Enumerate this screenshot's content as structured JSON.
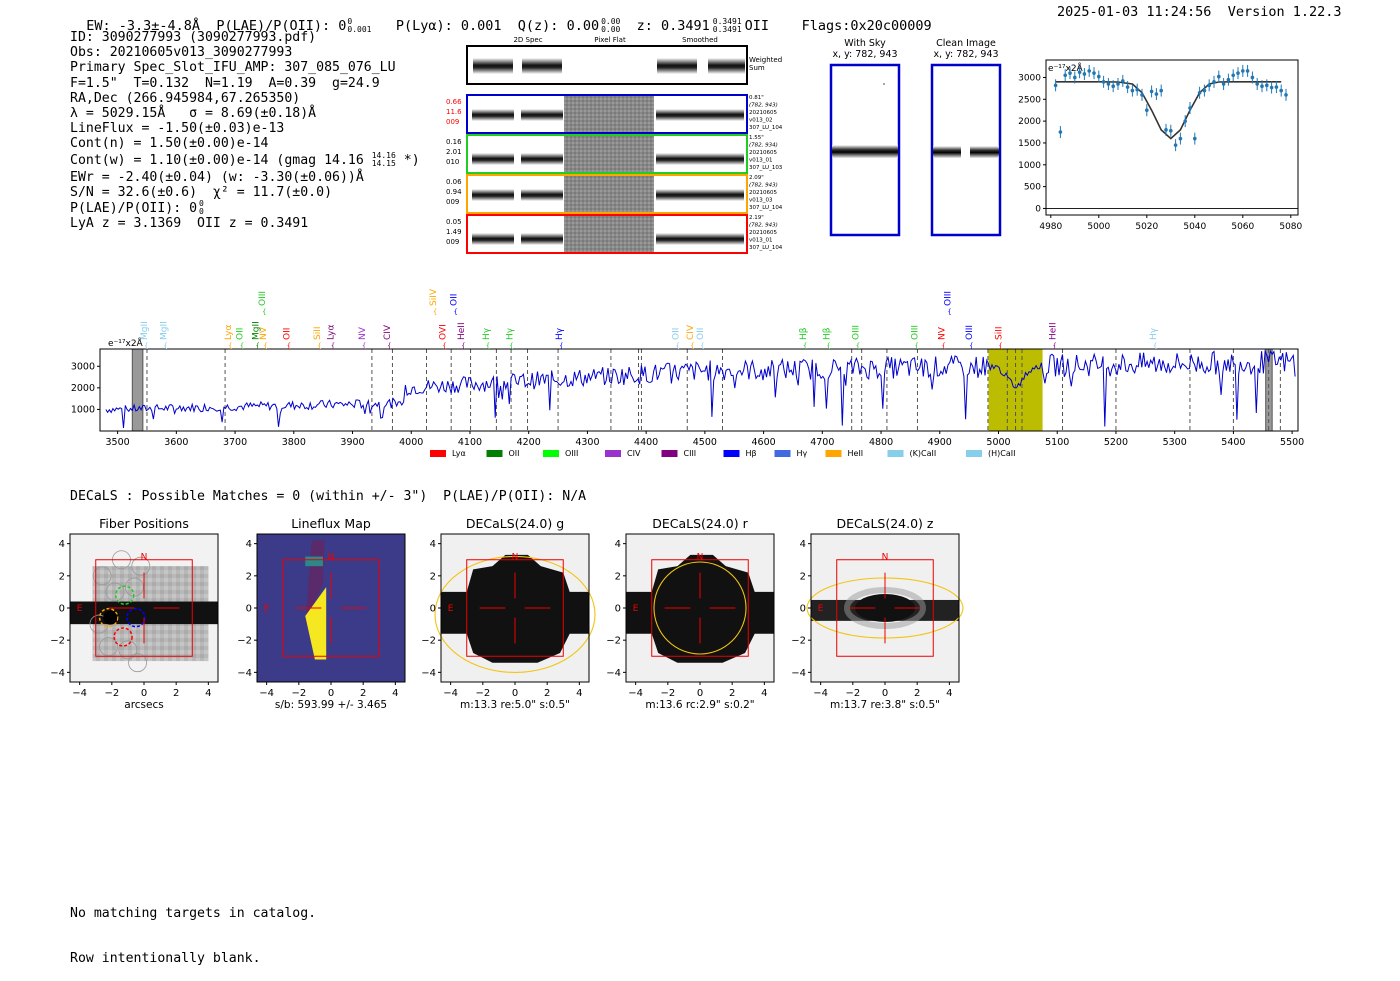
{
  "header": {
    "ew": "EW: -3.3±-4.8Å",
    "plae_label": "P(LAE)/P(OII): 0",
    "plae_sup": "0",
    "plae_sub": "0.001",
    "plya": "P(Lyα): 0.001",
    "qz_label": "Q(z): 0.00",
    "qz_sup": "0.00",
    "qz_sub": "0.00",
    "z_label": "z: 0.3491",
    "z_sup": "0.3491",
    "z_sub": "0.3491",
    "z_line": "OII",
    "flags": "Flags:0x20c00009",
    "datetime": "2025-01-03 11:24:56",
    "version": "Version 1.22.3"
  },
  "info": {
    "id": "ID: 3090277993 (3090277993.pdf)",
    "obs": "Obs: 20210605v013_3090277993",
    "primary": "Primary Spec_Slot_IFU_AMP: 307_085_076_LU",
    "fwhm": "F=1.5\"  T=0.132  N=1.19  A=0.39  g=24.9",
    "radec": "RA,Dec (266.945984,67.265350)",
    "lambda": "λ = 5029.15Å   σ = 8.69(±0.18)Å",
    "lineflux": "LineFlux = -1.50(±0.03)e-13",
    "contn": "Cont(n) = 1.50(±0.00)e-14",
    "contw_pre": "Cont(w) = 1.10(±0.00)e-14 (gmag 14.16",
    "contw_sup": "14.16",
    "contw_sub": "14.15",
    "contw_post": " *)",
    "ewr": "EWr = -2.40(±0.04) (w: -3.30(±0.06))Å",
    "sn": "S/N = 32.6(±0.6)  χ² = 11.7(±0.0)",
    "plae2": "P(LAE)/P(OII): 0",
    "plae2_sup": "0",
    "plae2_sub": "0",
    "lya_z": "LyA z = 3.1369  OII z = 0.3491"
  },
  "cutouts": {
    "col_labels": [
      "2D Spec",
      "Pixel Flat",
      "Smoothed"
    ],
    "weighted_sum": "Weighted\nSum",
    "rows": [
      {
        "left": [
          "0.66",
          "11.6",
          "009"
        ],
        "left_color": "#ff0000",
        "border": "#0000cc",
        "right": [
          "0.81\"",
          "(782, 943)",
          "20210605",
          "v013_02",
          "307_LU_104"
        ]
      },
      {
        "left": [
          "0.16",
          "2.01",
          "010"
        ],
        "left_color": "#000000",
        "border": "#22cc22",
        "right": [
          "1.55\"",
          "(782, 934)",
          "20210605",
          "v013_01",
          "307_LU_103"
        ]
      },
      {
        "left": [
          "0.06",
          "0.94",
          "009"
        ],
        "left_color": "#000000",
        "border": "#ffa500",
        "right": [
          "2.09\"",
          "(782, 943)",
          "20210605",
          "v013_03",
          "307_LU_104"
        ]
      },
      {
        "left": [
          "0.05",
          "1.49",
          "009"
        ],
        "left_color": "#000000",
        "border": "#ff0000",
        "right": [
          "2.19\"",
          "(782, 943)",
          "20210605",
          "v013_01",
          "307_LU_104"
        ]
      }
    ]
  },
  "sky": {
    "with_sky_title": "With Sky",
    "with_sky_xy": "x, y: 782, 943",
    "clean_title": "Clean Image",
    "clean_xy": "x, y: 782, 943"
  },
  "zoom_chart": {
    "type": "scatter",
    "unit_label": "e⁻¹⁷x2Å",
    "xlim": [
      4978,
      5083
    ],
    "ylim": [
      -150,
      3400
    ],
    "xticks": [
      "4980",
      "5000",
      "5020",
      "5040",
      "5060",
      "5080"
    ],
    "yticks": [
      "0",
      "500",
      "1000",
      "1500",
      "2000",
      "2500",
      "3000"
    ],
    "points_x": [
      4982,
      4984,
      4986,
      4988,
      4990,
      4992,
      4994,
      4996,
      4998,
      5000,
      5002,
      5004,
      5006,
      5008,
      5010,
      5012,
      5014,
      5016,
      5018,
      5020,
      5022,
      5024,
      5026,
      5028,
      5030,
      5032,
      5034,
      5036,
      5038,
      5040,
      5042,
      5044,
      5046,
      5048,
      5050,
      5052,
      5054,
      5056,
      5058,
      5060,
      5062,
      5064,
      5066,
      5068,
      5070,
      5072,
      5074,
      5076,
      5078
    ],
    "points_y": [
      2820,
      1750,
      3050,
      3100,
      3000,
      3120,
      3080,
      3150,
      3100,
      3020,
      2900,
      2850,
      2800,
      2850,
      2920,
      2780,
      2700,
      2720,
      2600,
      2250,
      2680,
      2620,
      2700,
      1800,
      1780,
      1450,
      1600,
      2000,
      2300,
      1600,
      2650,
      2700,
      2820,
      2900,
      3020,
      2850,
      2950,
      3050,
      3100,
      3150,
      3150,
      3000,
      2850,
      2800,
      2820,
      2770,
      2780,
      2700,
      2600
    ],
    "model_x": [
      4982,
      4990,
      5000,
      5008,
      5014,
      5018,
      5022,
      5026,
      5030,
      5034,
      5038,
      5042,
      5046,
      5050,
      5056,
      5064,
      5072,
      5076
    ],
    "model_y": [
      2900,
      2900,
      2900,
      2895,
      2850,
      2650,
      2250,
      1800,
      1600,
      1800,
      2250,
      2650,
      2850,
      2895,
      2900,
      2900,
      2900,
      2900
    ]
  },
  "spectrum": {
    "type": "line",
    "unit_label": "e⁻¹⁷x2Å",
    "xlim": [
      3470,
      5510
    ],
    "ylim": [
      0,
      3800
    ],
    "xticks": [
      "3500",
      "3600",
      "3700",
      "3800",
      "3900",
      "4000",
      "4100",
      "4200",
      "4300",
      "4400",
      "4500",
      "4600",
      "4700",
      "4800",
      "4900",
      "5000",
      "5100",
      "5200",
      "5300",
      "5400",
      "5500"
    ],
    "yticks": [
      "1000",
      "2000",
      "3000"
    ],
    "highlight_range": [
      4983,
      5075
    ],
    "dashed_lines": [
      3550,
      3683,
      3933,
      3968,
      4026,
      4068,
      4101,
      4145,
      4170,
      4198,
      4250,
      4340,
      4387,
      4392,
      4470,
      4530,
      4750,
      4767,
      4810,
      4862,
      4982,
      5015,
      5029,
      5040,
      5109,
      5200,
      5326,
      5400,
      5460,
      5480
    ],
    "line_labels": [
      {
        "text": "MgII",
        "x": 3550,
        "color": "#87ceeb",
        "row": "low"
      },
      {
        "text": "MgII",
        "x": 3583,
        "color": "#87ceeb",
        "row": "low"
      },
      {
        "text": "Lyα",
        "x": 3693,
        "color": "#ffa500",
        "row": "low"
      },
      {
        "text": "OII",
        "x": 3713,
        "color": "#22cc22",
        "row": "low"
      },
      {
        "text": "MgII",
        "x": 3740,
        "color": "#008000",
        "row": "low"
      },
      {
        "text": "NV",
        "x": 3753,
        "color": "#ffa500",
        "row": "low"
      },
      {
        "text": "OII",
        "x": 3793,
        "color": "#ff0000",
        "row": "low"
      },
      {
        "text": "SiII",
        "x": 3845,
        "color": "#ffa500",
        "row": "low"
      },
      {
        "text": "Lyα",
        "x": 3868,
        "color": "#800080",
        "row": "low"
      },
      {
        "text": "NV",
        "x": 3921,
        "color": "#9932cc",
        "row": "low"
      },
      {
        "text": "CIV",
        "x": 3964,
        "color": "#800080",
        "row": "low"
      },
      {
        "text": "OVI",
        "x": 4058,
        "color": "#ff0000",
        "row": "low"
      },
      {
        "text": "HeII",
        "x": 4090,
        "color": "#800080",
        "row": "low"
      },
      {
        "text": "Hγ",
        "x": 4132,
        "color": "#22cc22",
        "row": "low"
      },
      {
        "text": "Hγ",
        "x": 4172,
        "color": "#22cc22",
        "row": "low"
      },
      {
        "text": "Hγ",
        "x": 4257,
        "color": "#0000ff",
        "row": "low"
      },
      {
        "text": "OII",
        "x": 4455,
        "color": "#87ceeb",
        "row": "low"
      },
      {
        "text": "CIV",
        "x": 4480,
        "color": "#ffa500",
        "row": "low"
      },
      {
        "text": "OII",
        "x": 4497,
        "color": "#87ceeb",
        "row": "low"
      },
      {
        "text": "Hβ",
        "x": 4672,
        "color": "#22cc22",
        "row": "low"
      },
      {
        "text": "Hβ",
        "x": 4712,
        "color": "#22cc22",
        "row": "low"
      },
      {
        "text": "OIII",
        "x": 4762,
        "color": "#22cc22",
        "row": "low"
      },
      {
        "text": "OIII",
        "x": 4862,
        "color": "#22cc22",
        "row": "low"
      },
      {
        "text": "NV",
        "x": 4908,
        "color": "#ff0000",
        "row": "low"
      },
      {
        "text": "OIII",
        "x": 4955,
        "color": "#0000ff",
        "row": "low"
      },
      {
        "text": "SiII",
        "x": 5005,
        "color": "#ff0000",
        "row": "low"
      },
      {
        "text": "HeII",
        "x": 5097,
        "color": "#800080",
        "row": "low"
      },
      {
        "text": "Hγ",
        "x": 5268,
        "color": "#87ceeb",
        "row": "low"
      },
      {
        "text": "OIII",
        "x": 3751,
        "color": "#22cc22",
        "row": "high"
      },
      {
        "text": "SiIV",
        "x": 4042,
        "color": "#ffa500",
        "row": "high"
      },
      {
        "text": "OII",
        "x": 4077,
        "color": "#0000ff",
        "row": "high"
      },
      {
        "text": "OIII",
        "x": 4918,
        "color": "#0000ff",
        "row": "high"
      }
    ],
    "legend": [
      {
        "label": "Lyα",
        "color": "#ff0000"
      },
      {
        "label": "OII",
        "color": "#008000"
      },
      {
        "label": "OIII",
        "color": "#00ff00"
      },
      {
        "label": "CIV",
        "color": "#9932cc"
      },
      {
        "label": "CIII",
        "color": "#800080"
      },
      {
        "label": "Hβ",
        "color": "#0000ff"
      },
      {
        "label": "Hγ",
        "color": "#4169e1"
      },
      {
        "label": "HeII",
        "color": "#ffa500"
      },
      {
        "label": "(K)CaII",
        "color": "#87ceeb"
      },
      {
        "label": "(H)CaII",
        "color": "#87ceeb"
      }
    ]
  },
  "decals": {
    "summary": "DECaLS : Possible Matches = 0 (within +/- 3\")  P(LAE)/P(OII): N/A",
    "axis_ticks": [
      "-4",
      "-2",
      "0",
      "2",
      "4"
    ],
    "compass_n": "N",
    "compass_e": "E",
    "panels": [
      {
        "title": "Fiber Positions",
        "caption": "arcsecs"
      },
      {
        "title": "Lineflux Map",
        "caption": "s/b: 593.99 +/- 3.465"
      },
      {
        "title": "DECaLS(24.0) g",
        "caption": "m:13.3  re:5.0\"  s:0.5\""
      },
      {
        "title": "DECaLS(24.0) r",
        "caption": "m:13.6  rc:2.9\"  s:0.2\""
      },
      {
        "title": "DECaLS(24.0) z",
        "caption": "m:13.7  re:3.8\"  s:0.5\""
      }
    ]
  },
  "footer": {
    "line1": "No matching targets in catalog.",
    "line2": "Row intentionally blank."
  }
}
